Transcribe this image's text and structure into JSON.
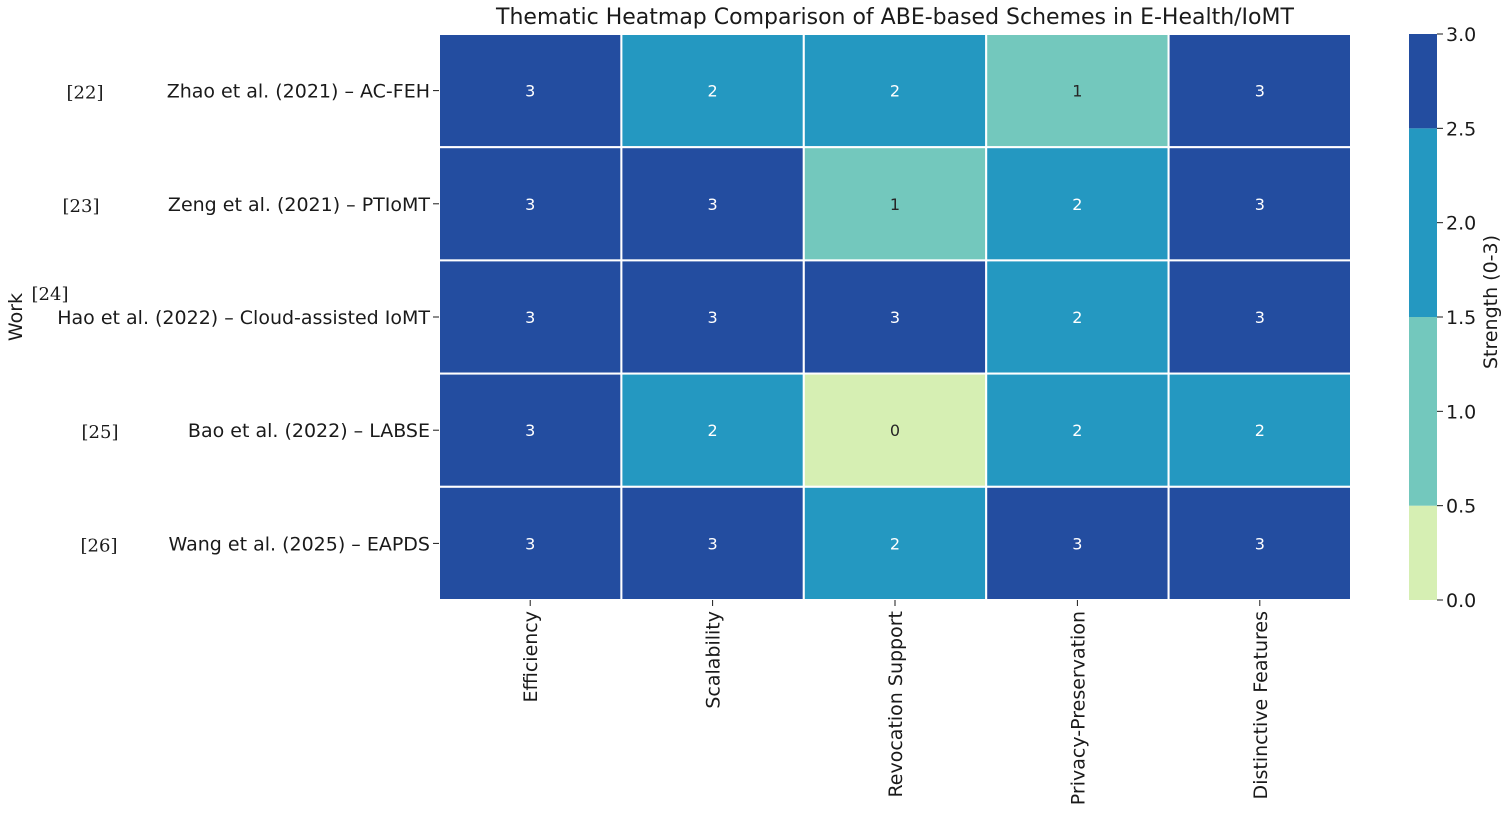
{
  "chart_data": {
    "type": "heatmap",
    "title": "Thematic Heatmap Comparison of ABE-based Schemes in E-Health/IoMT",
    "ylabel": "Work",
    "columns": [
      "Efficiency",
      "Scalability",
      "Revocation Support",
      "Privacy-Preservation",
      "Distinctive Features"
    ],
    "rows": [
      {
        "ref": "[22]",
        "label": "Zhao et al. (2021) – AC-FEH",
        "values": [
          3,
          2,
          2,
          1,
          3
        ]
      },
      {
        "ref": "[23]",
        "label": "Zeng et al. (2021) – PTIoMT",
        "values": [
          3,
          3,
          1,
          2,
          3
        ]
      },
      {
        "ref": "[24]",
        "label": "Hao et al. (2022) – Cloud-assisted IoMT",
        "values": [
          3,
          3,
          3,
          2,
          3
        ]
      },
      {
        "ref": "[25]",
        "label": "Bao et al. (2022) – LABSE",
        "values": [
          3,
          2,
          0,
          2,
          2
        ]
      },
      {
        "ref": "[26]",
        "label": "Wang et al. (2025) – EAPDS",
        "values": [
          3,
          3,
          2,
          3,
          3
        ]
      }
    ],
    "colorbar": {
      "label": "Strength (0-3)",
      "range": [
        0,
        3
      ],
      "ticks": [
        "0.0",
        "0.5",
        "1.0",
        "1.5",
        "2.0",
        "2.5",
        "3.0"
      ],
      "levels": [
        {
          "value": 0,
          "color": "#d6efb3"
        },
        {
          "value": 1,
          "color": "#73c8bd"
        },
        {
          "value": 2,
          "color": "#2498c1"
        },
        {
          "value": 3,
          "color": "#234da0"
        }
      ]
    },
    "legend": "right"
  }
}
